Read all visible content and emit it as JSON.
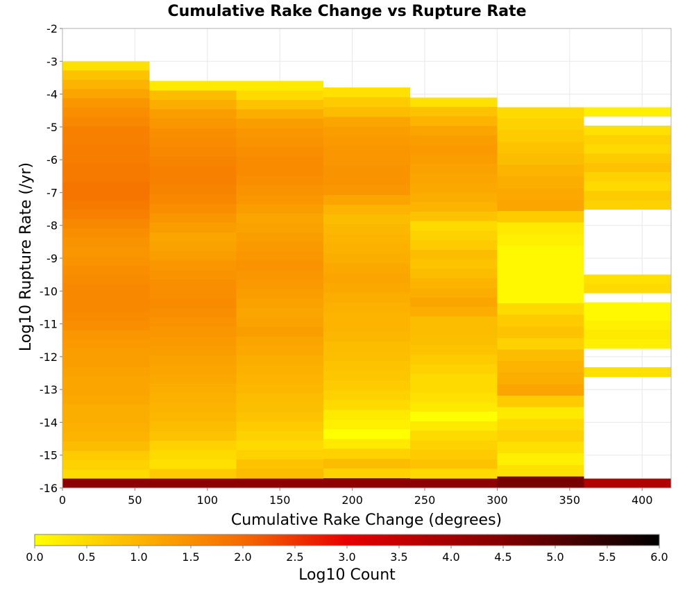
{
  "chart_data": {
    "type": "heatmap",
    "title": "Cumulative Rake Change vs Rupture Rate",
    "xlabel": "Cumulative Rake Change (degrees)",
    "ylabel": "Log10 Rupture Rate (/yr)",
    "xlim": [
      0,
      420
    ],
    "ylim": [
      -16,
      -2
    ],
    "x_ticks": [
      0,
      50,
      100,
      150,
      200,
      250,
      300,
      350,
      400
    ],
    "y_ticks": [
      -2,
      -3,
      -4,
      -5,
      -6,
      -7,
      -8,
      -9,
      -10,
      -11,
      -12,
      -13,
      -14,
      -15,
      -16
    ],
    "grid": true,
    "x_bin_width": 60,
    "y_bin_height": 0.286,
    "colorbar": {
      "label": "Log10 Count",
      "range": [
        0,
        6
      ],
      "ticks": [
        "0.0",
        "0.5",
        "1.0",
        "1.5",
        "2.0",
        "2.5",
        "3.0",
        "3.5",
        "4.0",
        "4.5",
        "5.0",
        "5.5",
        "6.0"
      ],
      "colormap": [
        {
          "v": 0.0,
          "color": "#ffff00"
        },
        {
          "v": 1.0,
          "color": "#fcb400"
        },
        {
          "v": 2.0,
          "color": "#f56a00"
        },
        {
          "v": 3.0,
          "color": "#e60000"
        },
        {
          "v": 4.5,
          "color": "#800000"
        },
        {
          "v": 6.0,
          "color": "#000000"
        }
      ]
    },
    "columns": [
      {
        "x": 0,
        "y_top": -3.0,
        "y_bottom": -16.0,
        "values": [
          0.4,
          0.8,
          1.0,
          1.2,
          1.4,
          1.5,
          1.6,
          1.7,
          1.7,
          1.75,
          1.75,
          1.8,
          1.8,
          1.85,
          1.85,
          1.8,
          1.7,
          1.6,
          1.5,
          1.45,
          1.4,
          1.45,
          1.5,
          1.55,
          1.6,
          1.6,
          1.6,
          1.55,
          1.5,
          1.4,
          1.35,
          1.3,
          1.3,
          1.25,
          1.2,
          1.2,
          1.15,
          1.1,
          1.1,
          1.05,
          1.0,
          0.9,
          0.7,
          0.6,
          0.5,
          4.3
        ]
      },
      {
        "x": 60,
        "y_top": -3.6,
        "y_bottom": -16.0,
        "values": [
          0.3,
          0.9,
          1.1,
          1.3,
          1.4,
          1.5,
          1.55,
          1.6,
          1.65,
          1.7,
          1.7,
          1.65,
          1.6,
          1.5,
          1.4,
          1.3,
          1.2,
          1.25,
          1.3,
          1.4,
          1.45,
          1.5,
          1.5,
          1.55,
          1.5,
          1.45,
          1.4,
          1.35,
          1.3,
          1.25,
          1.2,
          1.15,
          1.1,
          1.05,
          1.0,
          0.95,
          0.9,
          0.8,
          0.6,
          0.5,
          0.4,
          0.7,
          4.3
        ]
      },
      {
        "x": 120,
        "y_top": -3.6,
        "y_bottom": -16.0,
        "values": [
          0.3,
          0.5,
          0.8,
          1.1,
          1.3,
          1.4,
          1.45,
          1.5,
          1.55,
          1.55,
          1.5,
          1.45,
          1.4,
          1.3,
          1.2,
          1.25,
          1.3,
          1.35,
          1.4,
          1.45,
          1.4,
          1.35,
          1.3,
          1.25,
          1.2,
          1.25,
          1.3,
          1.2,
          1.15,
          1.1,
          1.05,
          1.0,
          0.95,
          0.9,
          0.85,
          0.8,
          0.7,
          0.6,
          0.5,
          0.6,
          0.8,
          0.9,
          4.3
        ]
      },
      {
        "x": 180,
        "y_top": -3.8,
        "y_bottom": -16.0,
        "values": [
          0.4,
          0.7,
          0.9,
          1.2,
          1.3,
          1.35,
          1.4,
          1.4,
          1.45,
          1.45,
          1.4,
          1.2,
          1.0,
          0.9,
          0.95,
          1.0,
          1.05,
          1.1,
          1.15,
          1.2,
          1.15,
          1.1,
          1.05,
          1.0,
          1.0,
          0.95,
          0.9,
          0.85,
          0.8,
          0.75,
          0.7,
          0.6,
          0.5,
          0.3,
          0.2,
          0.0,
          0.3,
          0.6,
          0.9,
          0.6,
          4.3
        ]
      },
      {
        "x": 240,
        "y_top": -4.1,
        "y_bottom": -16.0,
        "values": [
          0.4,
          0.8,
          1.0,
          1.2,
          1.3,
          1.35,
          1.3,
          1.25,
          1.2,
          1.15,
          1.1,
          1.0,
          0.8,
          0.5,
          0.6,
          0.7,
          0.9,
          0.8,
          0.9,
          1.0,
          1.1,
          1.2,
          1.1,
          0.9,
          0.9,
          0.85,
          0.8,
          0.7,
          0.6,
          0.5,
          0.5,
          0.4,
          0.3,
          0.0,
          0.3,
          0.5,
          0.6,
          0.7,
          0.8,
          0.5,
          4.3
        ]
      },
      {
        "x": 300,
        "y_top": -4.4,
        "y_bottom": -16.0,
        "values": [
          0.5,
          0.6,
          0.7,
          0.8,
          0.9,
          1.0,
          1.1,
          1.15,
          1.2,
          0.7,
          0.3,
          0.2,
          0.1,
          0.1,
          0.1,
          0.1,
          0.1,
          0.5,
          0.7,
          0.8,
          0.6,
          0.9,
          1.0,
          1.1,
          1.2,
          0.7,
          0.3,
          0.5,
          0.6,
          0.4,
          0.2,
          0.4,
          4.6
        ]
      },
      {
        "x": 360,
        "y_top": -4.4,
        "y_bottom": -16.0,
        "values": [
          0.2,
          null,
          0.4,
          0.6,
          0.5,
          0.7,
          0.8,
          0.6,
          0.5,
          0.7,
          0.6,
          null,
          null,
          null,
          null,
          null,
          null,
          null,
          0.4,
          0.5,
          null,
          0.1,
          0.1,
          0.2,
          0.3,
          0.2,
          null,
          null,
          0.4,
          null,
          null,
          null,
          null,
          null,
          null,
          null,
          null,
          null,
          null,
          null,
          3.8
        ]
      }
    ]
  }
}
